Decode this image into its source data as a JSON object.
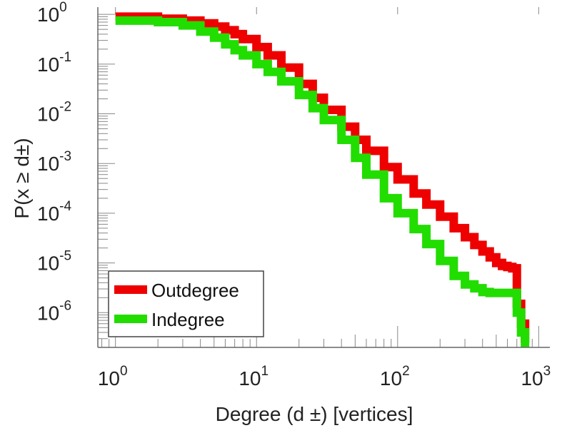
{
  "chart_data": {
    "type": "line",
    "title": "",
    "xlabel": "Degree (d  ±) [vertices]",
    "ylabel": "P(x ≥ d±)",
    "x_scale": "log",
    "y_scale": "log",
    "xlim": [
      0.75,
      1200
    ],
    "ylim": [
      2e-07,
      1.4
    ],
    "x_ticks": [
      {
        "value": 1,
        "base": "10",
        "exp": "0"
      },
      {
        "value": 10,
        "base": "10",
        "exp": "1"
      },
      {
        "value": 100,
        "base": "10",
        "exp": "2"
      },
      {
        "value": 1000,
        "base": "10",
        "exp": "3"
      }
    ],
    "y_ticks": [
      {
        "value": 1,
        "base": "10",
        "exp": "0"
      },
      {
        "value": 0.1,
        "base": "10",
        "exp": "-1"
      },
      {
        "value": 0.01,
        "base": "10",
        "exp": "-2"
      },
      {
        "value": 0.001,
        "base": "10",
        "exp": "-3"
      },
      {
        "value": 0.0001,
        "base": "10",
        "exp": "-4"
      },
      {
        "value": 1e-05,
        "base": "10",
        "exp": "-5"
      },
      {
        "value": 1e-06,
        "base": "10",
        "exp": "-6"
      }
    ],
    "grid": false,
    "legend_position": "bottom-left",
    "series": [
      {
        "name": "Outdegree",
        "color": "#ee0000",
        "x": [
          1,
          2,
          3,
          4,
          5,
          6,
          7,
          8,
          10,
          12,
          15,
          20,
          25,
          30,
          40,
          50,
          60,
          80,
          100,
          130,
          160,
          200,
          250,
          300,
          350,
          400,
          450,
          500,
          550,
          600,
          650,
          700,
          750,
          800
        ],
        "y": [
          0.9,
          0.82,
          0.75,
          0.66,
          0.57,
          0.48,
          0.4,
          0.32,
          0.22,
          0.15,
          0.085,
          0.04,
          0.021,
          0.012,
          0.0055,
          0.003,
          0.0018,
          0.00085,
          0.00048,
          0.00025,
          0.00015,
          8.5e-05,
          5e-05,
          3.3e-05,
          2.3e-05,
          1.7e-05,
          1.3e-05,
          1e-05,
          8.7e-06,
          8.3e-06,
          7.8e-06,
          1.5e-06,
          6e-07,
          2.5e-07
        ]
      },
      {
        "name": "Indegree",
        "color": "#22dd00",
        "x": [
          1,
          2,
          3,
          4,
          5,
          6,
          7,
          8,
          10,
          12,
          15,
          20,
          25,
          30,
          40,
          50,
          60,
          80,
          100,
          130,
          160,
          200,
          250,
          300,
          350,
          400,
          450,
          500,
          550,
          600,
          650,
          700,
          750,
          800
        ],
        "y": [
          0.75,
          0.7,
          0.6,
          0.45,
          0.34,
          0.25,
          0.19,
          0.15,
          0.1,
          0.07,
          0.045,
          0.024,
          0.013,
          0.0075,
          0.003,
          0.0013,
          0.0006,
          0.0002,
          0.0001,
          4.8e-05,
          2.4e-05,
          1.1e-05,
          5.5e-06,
          3.7e-06,
          3.1e-06,
          2.6e-06,
          2.5e-06,
          2.5e-06,
          2.5e-06,
          2.5e-06,
          2.5e-06,
          1e-06,
          4e-07,
          2e-07
        ]
      }
    ]
  }
}
